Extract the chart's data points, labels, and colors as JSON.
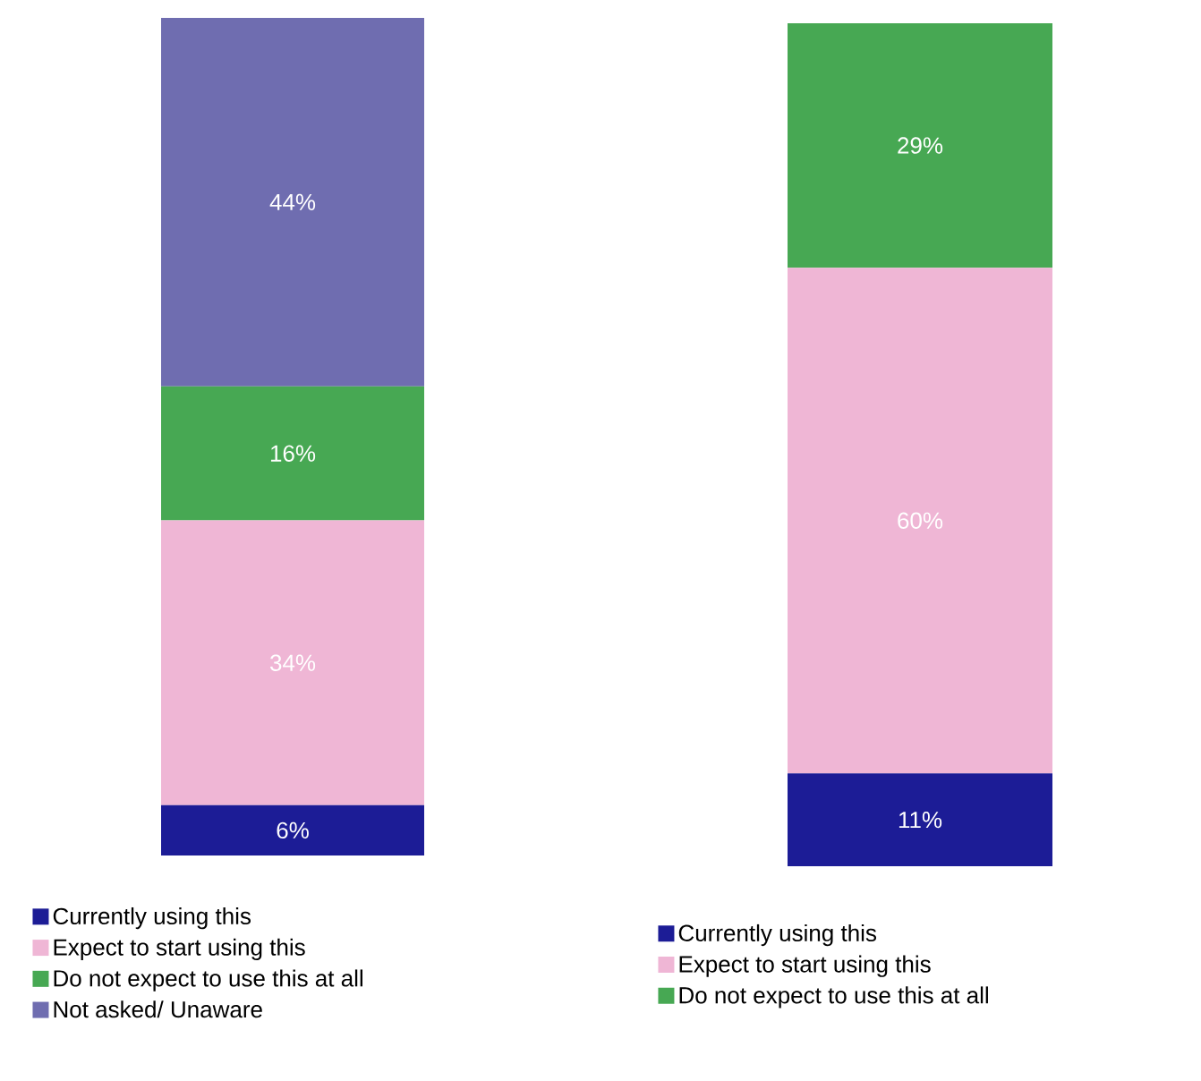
{
  "chart_data": [
    {
      "type": "bar",
      "stacked": true,
      "categories": [
        null
      ],
      "legend": "bottom",
      "series": [
        {
          "name": "Currently using this",
          "color": "#1c1c96",
          "values": [
            6
          ],
          "value_labels": [
            "6%"
          ]
        },
        {
          "name": "Expect to start using this",
          "color": "#efb6d5",
          "values": [
            34
          ],
          "value_labels": [
            "34%"
          ]
        },
        {
          "name": "Do not expect to use this at all",
          "color": "#47a853",
          "values": [
            16
          ],
          "value_labels": [
            "16%"
          ]
        },
        {
          "name": "Not asked/ Unaware",
          "color": "#6f6db0",
          "values": [
            44
          ],
          "value_labels": [
            "44%"
          ]
        }
      ]
    },
    {
      "type": "bar",
      "stacked": true,
      "categories": [
        null
      ],
      "legend": "bottom",
      "series": [
        {
          "name": "Currently using this",
          "color": "#1c1c96",
          "values": [
            11
          ],
          "value_labels": [
            "11%"
          ]
        },
        {
          "name": "Expect to start using this",
          "color": "#efb6d5",
          "values": [
            60
          ],
          "value_labels": [
            "60%"
          ]
        },
        {
          "name": "Do not expect to use this at all",
          "color": "#47a853",
          "values": [
            29
          ],
          "value_labels": [
            "29%"
          ]
        }
      ]
    }
  ]
}
